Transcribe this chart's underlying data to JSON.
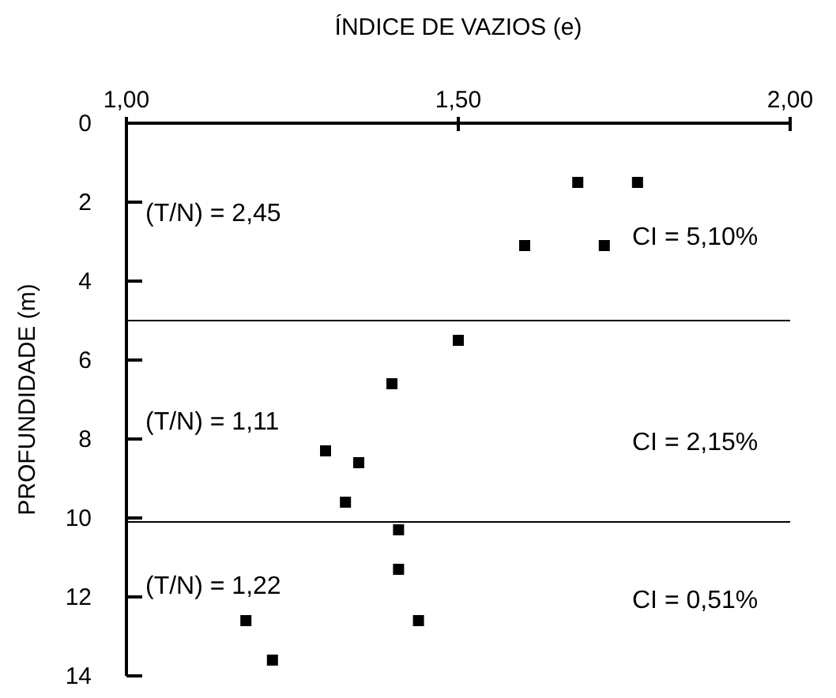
{
  "chart_data": {
    "type": "scatter",
    "xlabel": "ÍNDICE DE VAZIOS (e)",
    "ylabel": "PROFUNDIDADE (m)",
    "x": [
      1.68,
      1.77,
      1.6,
      1.72,
      1.5,
      1.4,
      1.3,
      1.35,
      1.33,
      1.41,
      1.41,
      1.18,
      1.44,
      1.22
    ],
    "values": [
      1.5,
      1.5,
      3.1,
      3.1,
      5.5,
      6.6,
      8.3,
      8.6,
      9.6,
      10.3,
      11.3,
      12.6,
      12.6,
      13.6
    ],
    "color": "#000000",
    "marker": "square",
    "xlim": [
      1,
      2
    ],
    "xticks": [
      {
        "value": 1,
        "label": "1,00"
      },
      {
        "value": 1.5,
        "label": "1,50"
      },
      {
        "value": 2,
        "label": "2,00"
      }
    ],
    "ylim": [
      14,
      0
    ],
    "yticks": [
      0,
      2,
      4,
      6,
      8,
      10,
      12,
      14
    ],
    "grid": false,
    "ref_lines": [
      {
        "axis": "y",
        "value": 5.0,
        "color": "#000000"
      },
      {
        "axis": "y",
        "value": 10.1,
        "color": "#000000"
      }
    ],
    "annotations": [
      "(T/N) = 2,45",
      "CI = 5,10%",
      "(T/N) = 1,11",
      "CI = 2,15%",
      "(T/N) = 1,22",
      "CI = 0,51%"
    ]
  }
}
